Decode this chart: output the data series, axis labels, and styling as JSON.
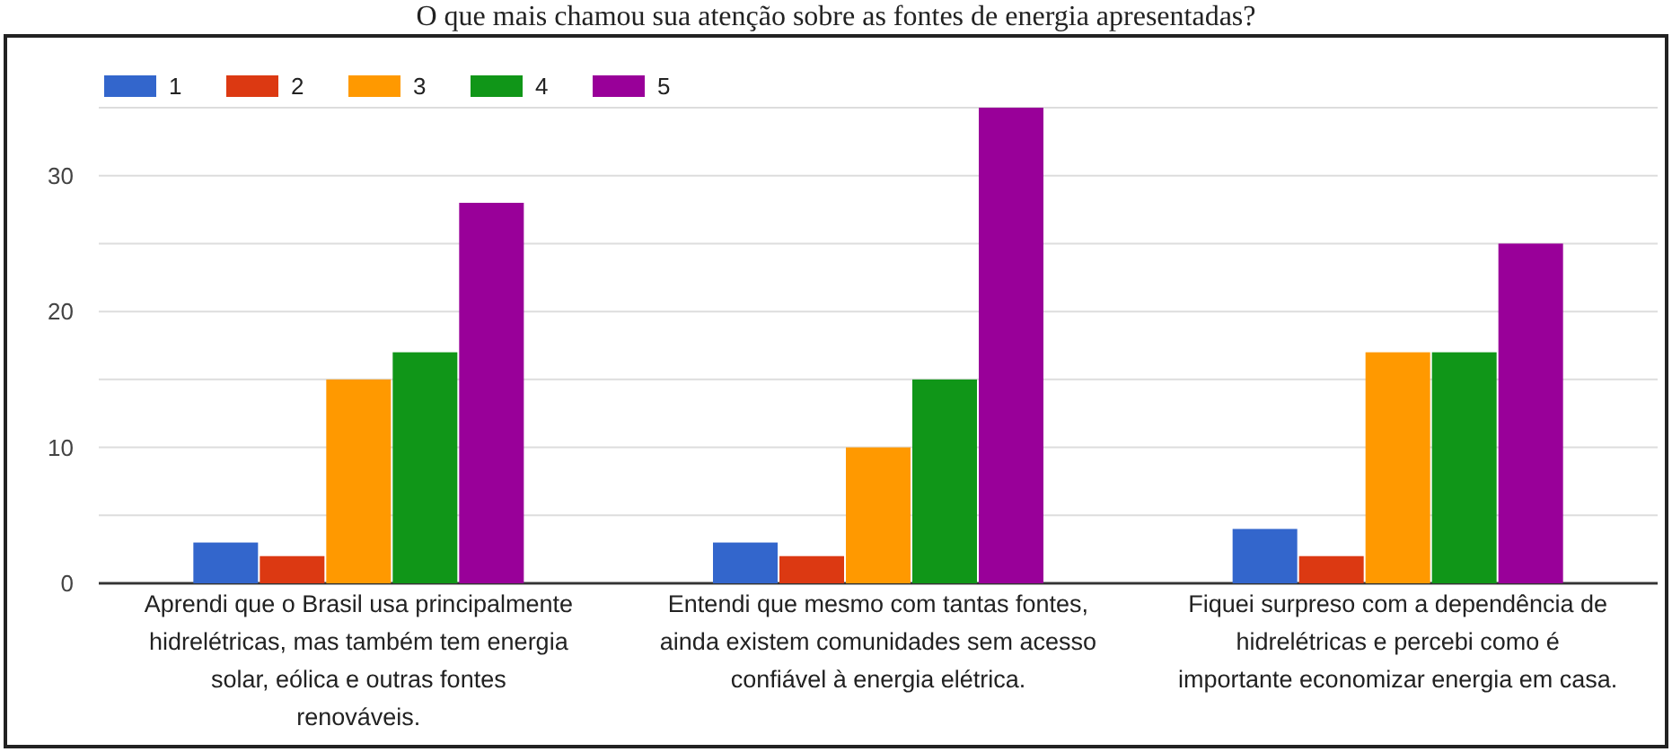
{
  "chart_data": {
    "type": "bar",
    "title": "O que mais chamou sua atenção sobre as fontes de energia apresentadas?",
    "categories": [
      "Aprendi que o Brasil usa principalmente hidrelétricas, mas também tem energia solar, eólica e outras fontes renováveis.",
      "Entendi que mesmo com tantas fontes, ainda existem comunidades sem acesso confiável à energia elétrica.",
      "Fiquei surpreso com a dependência de hidrelétricas e percebi como é importante economizar energia em casa."
    ],
    "series": [
      {
        "name": "1",
        "color": "#3366cc",
        "values": [
          3,
          3,
          4
        ]
      },
      {
        "name": "2",
        "color": "#dc3912",
        "values": [
          2,
          2,
          2
        ]
      },
      {
        "name": "3",
        "color": "#ff9900",
        "values": [
          15,
          10,
          17
        ]
      },
      {
        "name": "4",
        "color": "#109618",
        "values": [
          17,
          15,
          17
        ]
      },
      {
        "name": "5",
        "color": "#990099",
        "values": [
          28,
          35,
          25
        ]
      }
    ],
    "ylim": [
      0,
      35
    ],
    "yticks": [
      0,
      {
        "value": 5,
        "label": null
      },
      10,
      {
        "value": 15,
        "label": null
      },
      20,
      {
        "value": 25,
        "label": null
      },
      30,
      {
        "value": 35,
        "label": null
      }
    ],
    "grid": "y",
    "legend": "top left"
  }
}
